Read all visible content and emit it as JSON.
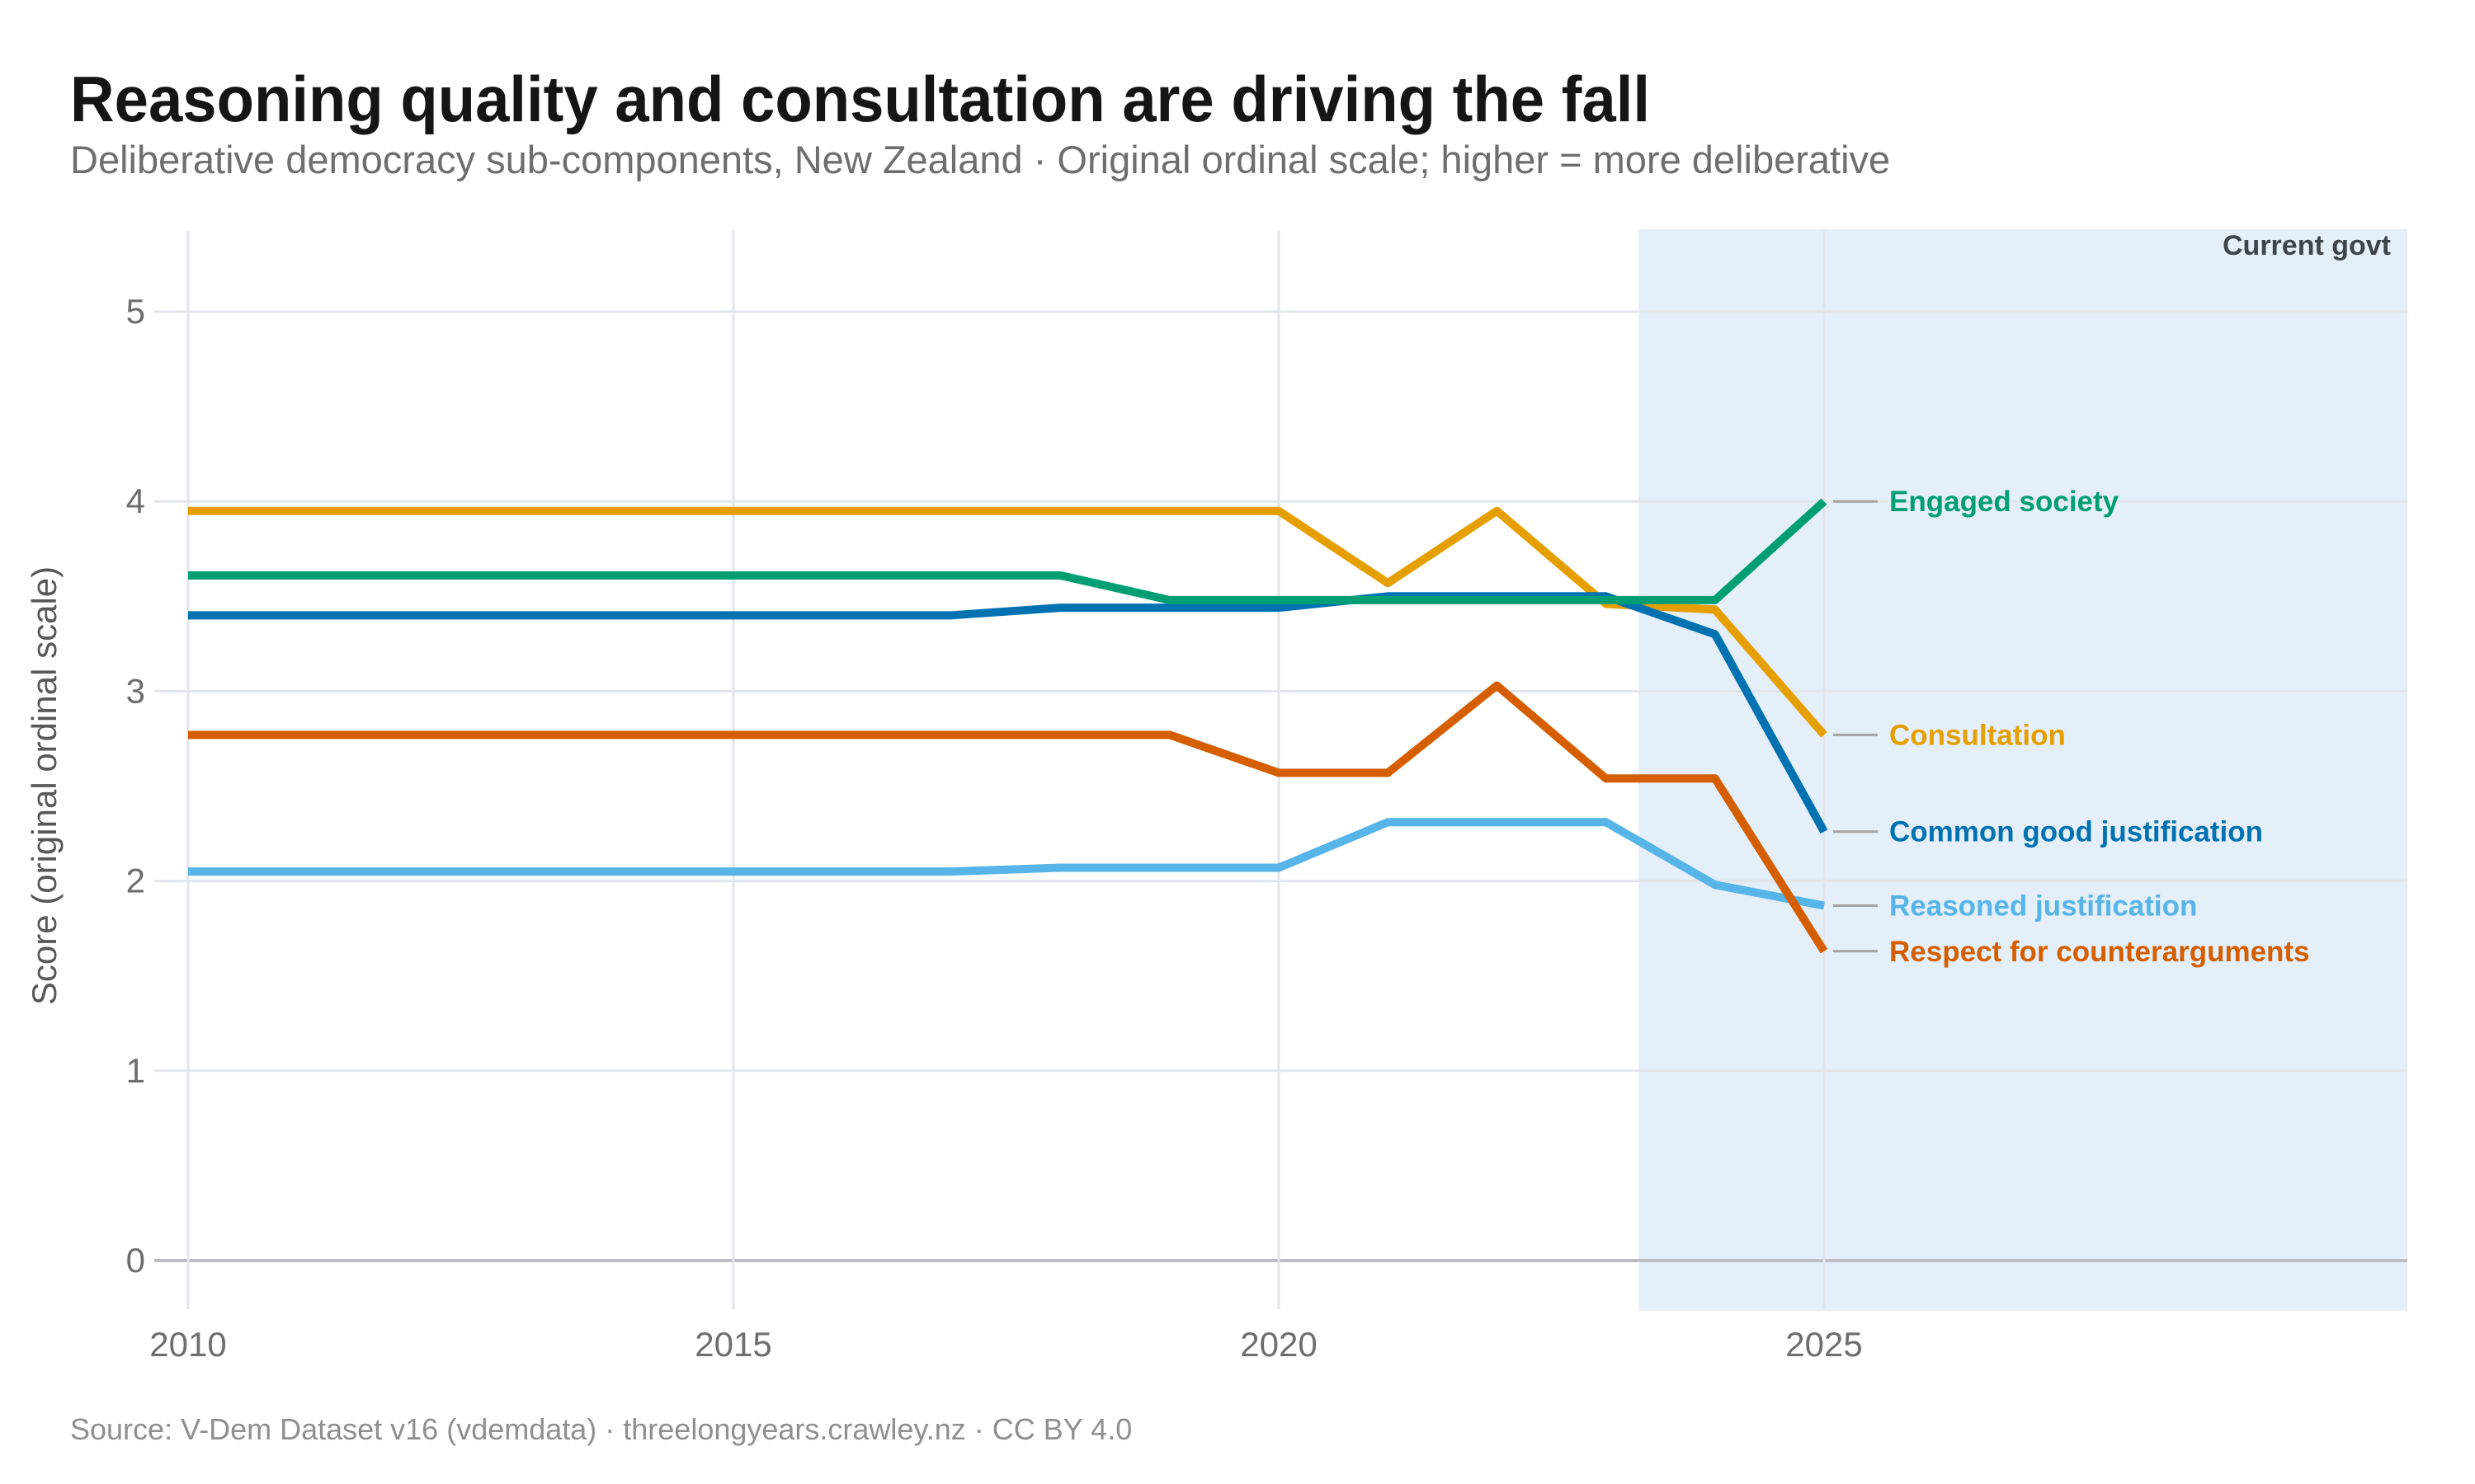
{
  "header": {
    "title": "Reasoning quality and consultation are driving the fall",
    "subtitle": "Deliberative democracy sub-components, New Zealand · Original ordinal scale; higher = more deliberative"
  },
  "footer": {
    "source": "Source: V-Dem Dataset v16 (vdemdata) · threelongyears.crawley.nz · CC BY 4.0"
  },
  "chart_data": {
    "type": "line",
    "title": "Reasoning quality and consultation are driving the fall",
    "xlabel": "",
    "ylabel": "Score (original ordinal scale)",
    "x": [
      2010,
      2011,
      2012,
      2013,
      2014,
      2015,
      2016,
      2017,
      2018,
      2019,
      2020,
      2021,
      2022,
      2023,
      2024,
      2025
    ],
    "x_ticks": [
      2010,
      2015,
      2020,
      2025
    ],
    "y_ticks": [
      0,
      1,
      2,
      3,
      4,
      5
    ],
    "ylim": [
      0,
      5.4
    ],
    "grid": true,
    "legend_position": "right-edge-labels",
    "series": [
      {
        "name": "Engaged society",
        "color": "#009E73",
        "values": [
          3.61,
          3.61,
          3.61,
          3.61,
          3.61,
          3.61,
          3.61,
          3.61,
          3.61,
          3.48,
          3.48,
          3.48,
          3.48,
          3.48,
          3.48,
          4.0
        ]
      },
      {
        "name": "Consultation",
        "color": "#E69F00",
        "values": [
          3.95,
          3.95,
          3.95,
          3.95,
          3.95,
          3.95,
          3.95,
          3.95,
          3.95,
          3.95,
          3.95,
          3.57,
          3.95,
          3.46,
          3.43,
          2.77
        ]
      },
      {
        "name": "Common good justification",
        "color": "#0072B2",
        "values": [
          3.4,
          3.4,
          3.4,
          3.4,
          3.4,
          3.4,
          3.4,
          3.4,
          3.44,
          3.44,
          3.44,
          3.5,
          3.5,
          3.5,
          3.3,
          2.26
        ]
      },
      {
        "name": "Reasoned justification",
        "color": "#56B4E9",
        "values": [
          2.05,
          2.05,
          2.05,
          2.05,
          2.05,
          2.05,
          2.05,
          2.05,
          2.07,
          2.07,
          2.07,
          2.31,
          2.31,
          2.31,
          1.98,
          1.87
        ]
      },
      {
        "name": "Respect for counterarguments",
        "color": "#D55E00",
        "values": [
          2.77,
          2.77,
          2.77,
          2.77,
          2.77,
          2.77,
          2.77,
          2.77,
          2.77,
          2.77,
          2.57,
          2.57,
          3.03,
          2.54,
          2.54,
          1.63
        ]
      }
    ],
    "highlight_region": {
      "label": "Current govt",
      "start_x": 2023.3,
      "end_x": "right-edge",
      "color": "#E4EFFA"
    }
  }
}
